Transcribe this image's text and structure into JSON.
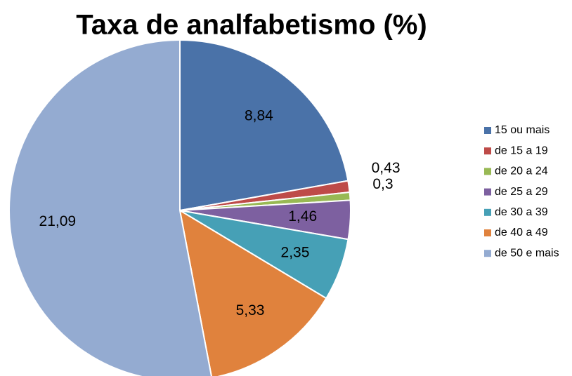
{
  "chart_data": {
    "type": "pie",
    "title": "Taxa de analfabetismo (%)",
    "categories": [
      "15 ou mais",
      "de 15 a 19",
      "de 20 a 24",
      "de 25 a 29",
      "de 30 a 39",
      "de 40 a 49",
      "de 50 e mais"
    ],
    "values": [
      8.84,
      0.43,
      0.3,
      1.46,
      2.35,
      5.33,
      21.09
    ],
    "value_labels": [
      "8,84",
      "0,43",
      "0,3",
      "1,46",
      "2,35",
      "5,33",
      "21,09"
    ],
    "colors": [
      "#4a72a8",
      "#be4b48",
      "#98b954",
      "#7d60a0",
      "#46a0b6",
      "#e0823d",
      "#94abd1"
    ],
    "legend": "right"
  }
}
